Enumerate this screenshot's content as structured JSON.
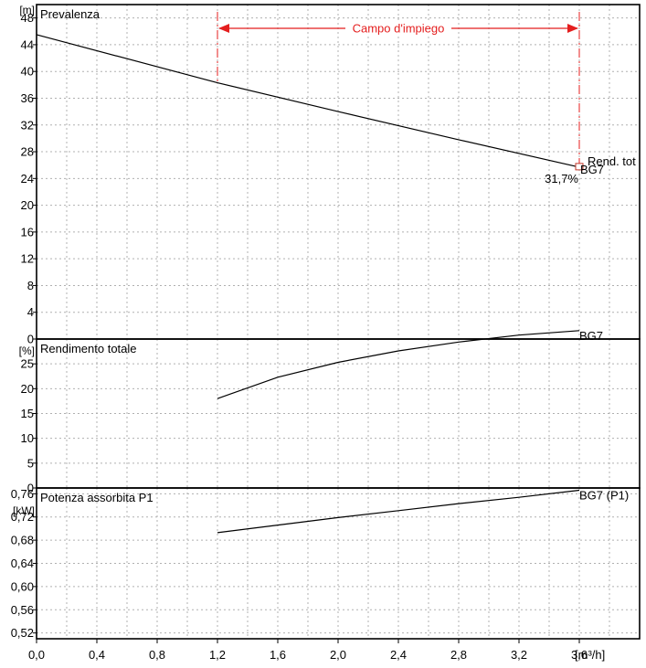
{
  "chart_data": [
    {
      "type": "line",
      "title": "Prevalenza",
      "ylabel": "[m]",
      "ylim": [
        0,
        50
      ],
      "yticks": [
        "0",
        "4",
        "8",
        "12",
        "16",
        "20",
        "24",
        "28",
        "32",
        "36",
        "40",
        "44",
        "48"
      ],
      "series": [
        {
          "name": "BG7",
          "x": [
            0.0,
            1.2,
            2.0,
            2.8,
            3.6
          ],
          "y": [
            45.5,
            38.3,
            34.0,
            29.8,
            25.7
          ]
        }
      ],
      "annotations": {
        "range_label": "Campo d'impiego",
        "range_x": [
          1.2,
          3.6
        ],
        "efficiency_label": "Rend. tot",
        "efficiency_value": "31,7%",
        "curve_label": "BG7"
      },
      "grid": true
    },
    {
      "type": "line",
      "title": "Rendimento totale",
      "ylabel": "[%]",
      "ylim": [
        0,
        30
      ],
      "yticks": [
        "0",
        "5",
        "10",
        "15",
        "20",
        "25"
      ],
      "series": [
        {
          "name": "BG7",
          "x": [
            1.2,
            1.6,
            2.0,
            2.4,
            2.8,
            3.2,
            3.6
          ],
          "y": [
            18.0,
            22.3,
            25.3,
            27.6,
            29.4,
            30.8,
            31.7
          ]
        }
      ],
      "curve_label": "BG7",
      "grid": true
    },
    {
      "type": "line",
      "title": "Potenza assorbita P1",
      "ylabel": "[kW]",
      "ylim": [
        0.51,
        0.77
      ],
      "yticks": [
        "0,52",
        "0,56",
        "0,60",
        "0,64",
        "0,68",
        "0,72",
        "0,76"
      ],
      "series": [
        {
          "name": "BG7 (P1)",
          "x": [
            1.2,
            1.6,
            2.0,
            2.4,
            2.8,
            3.2,
            3.6
          ],
          "y": [
            0.693,
            0.706,
            0.719,
            0.731,
            0.743,
            0.754,
            0.766
          ]
        }
      ],
      "curve_label": "BG7 (P1)",
      "grid": true
    }
  ],
  "x_axis": {
    "xlabel": "[m³/h]",
    "xlim": [
      0,
      4.0
    ],
    "xticks": [
      "0,0",
      "0,4",
      "0,8",
      "1,2",
      "1,6",
      "2,0",
      "2,4",
      "2,8",
      "3,2",
      "3,6"
    ]
  },
  "colors": {
    "curve": "#000000",
    "range": "#e41e1e",
    "grid": "#b0b0b0"
  }
}
